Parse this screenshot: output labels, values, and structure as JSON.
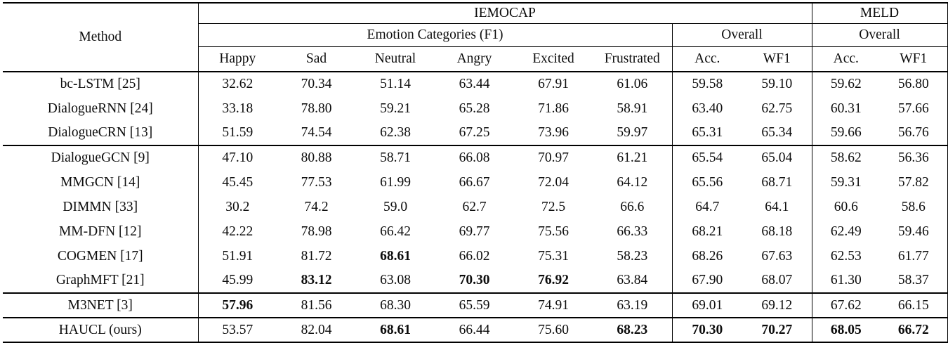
{
  "table": {
    "header": {
      "method": "Method",
      "iemocap": "IEMOCAP",
      "meld": "MELD",
      "emotion_categories": "Emotion Categories (F1)",
      "overall_iemocap": "Overall",
      "overall_meld": "Overall"
    },
    "columns": [
      "Happy",
      "Sad",
      "Neutral",
      "Angry",
      "Excited",
      "Frustrated",
      "Acc.",
      "WF1",
      "Acc.",
      "WF1"
    ],
    "rows": [
      {
        "method": "bc-LSTM [25]",
        "group_start": false,
        "values": [
          "32.62",
          "70.34",
          "51.14",
          "63.44",
          "67.91",
          "61.06",
          "59.58",
          "59.10",
          "59.62",
          "56.80"
        ],
        "bold": []
      },
      {
        "method": "DialogueRNN [24]",
        "group_start": false,
        "values": [
          "33.18",
          "78.80",
          "59.21",
          "65.28",
          "71.86",
          "58.91",
          "63.40",
          "62.75",
          "60.31",
          "57.66"
        ],
        "bold": []
      },
      {
        "method": "DialogueCRN [13]",
        "group_start": false,
        "values": [
          "51.59",
          "74.54",
          "62.38",
          "67.25",
          "73.96",
          "59.97",
          "65.31",
          "65.34",
          "59.66",
          "56.76"
        ],
        "bold": []
      },
      {
        "method": "DialogueGCN [9]",
        "group_start": true,
        "values": [
          "47.10",
          "80.88",
          "58.71",
          "66.08",
          "70.97",
          "61.21",
          "65.54",
          "65.04",
          "58.62",
          "56.36"
        ],
        "bold": []
      },
      {
        "method": "MMGCN [14]",
        "group_start": false,
        "values": [
          "45.45",
          "77.53",
          "61.99",
          "66.67",
          "72.04",
          "64.12",
          "65.56",
          "68.71",
          "59.31",
          "57.82"
        ],
        "bold": []
      },
      {
        "method": "DIMMN [33]",
        "group_start": false,
        "values": [
          "30.2",
          "74.2",
          "59.0",
          "62.7",
          "72.5",
          "66.6",
          "64.7",
          "64.1",
          "60.6",
          "58.6"
        ],
        "bold": []
      },
      {
        "method": "MM-DFN [12]",
        "group_start": false,
        "values": [
          "42.22",
          "78.98",
          "66.42",
          "69.77",
          "75.56",
          "66.33",
          "68.21",
          "68.18",
          "62.49",
          "59.46"
        ],
        "bold": []
      },
      {
        "method": "COGMEN [17]",
        "group_start": false,
        "values": [
          "51.91",
          "81.72",
          "68.61",
          "66.02",
          "75.31",
          "58.23",
          "68.26",
          "67.63",
          "62.53",
          "61.77"
        ],
        "bold": [
          2
        ]
      },
      {
        "method": "GraphMFT [21]",
        "group_start": false,
        "values": [
          "45.99",
          "83.12",
          "63.08",
          "70.30",
          "76.92",
          "63.84",
          "67.90",
          "68.07",
          "61.30",
          "58.37"
        ],
        "bold": [
          1,
          3,
          4
        ]
      },
      {
        "method": "M3NET [3]",
        "group_start": true,
        "values": [
          "57.96",
          "81.56",
          "68.30",
          "65.59",
          "74.91",
          "63.19",
          "69.01",
          "69.12",
          "67.62",
          "66.15"
        ],
        "bold": [
          0
        ]
      },
      {
        "method": "HAUCL (ours)",
        "group_start": true,
        "values": [
          "53.57",
          "82.04",
          "68.61",
          "66.44",
          "75.60",
          "68.23",
          "70.30",
          "70.27",
          "68.05",
          "66.72"
        ],
        "bold": [
          2,
          5,
          6,
          7,
          8,
          9
        ]
      }
    ]
  }
}
